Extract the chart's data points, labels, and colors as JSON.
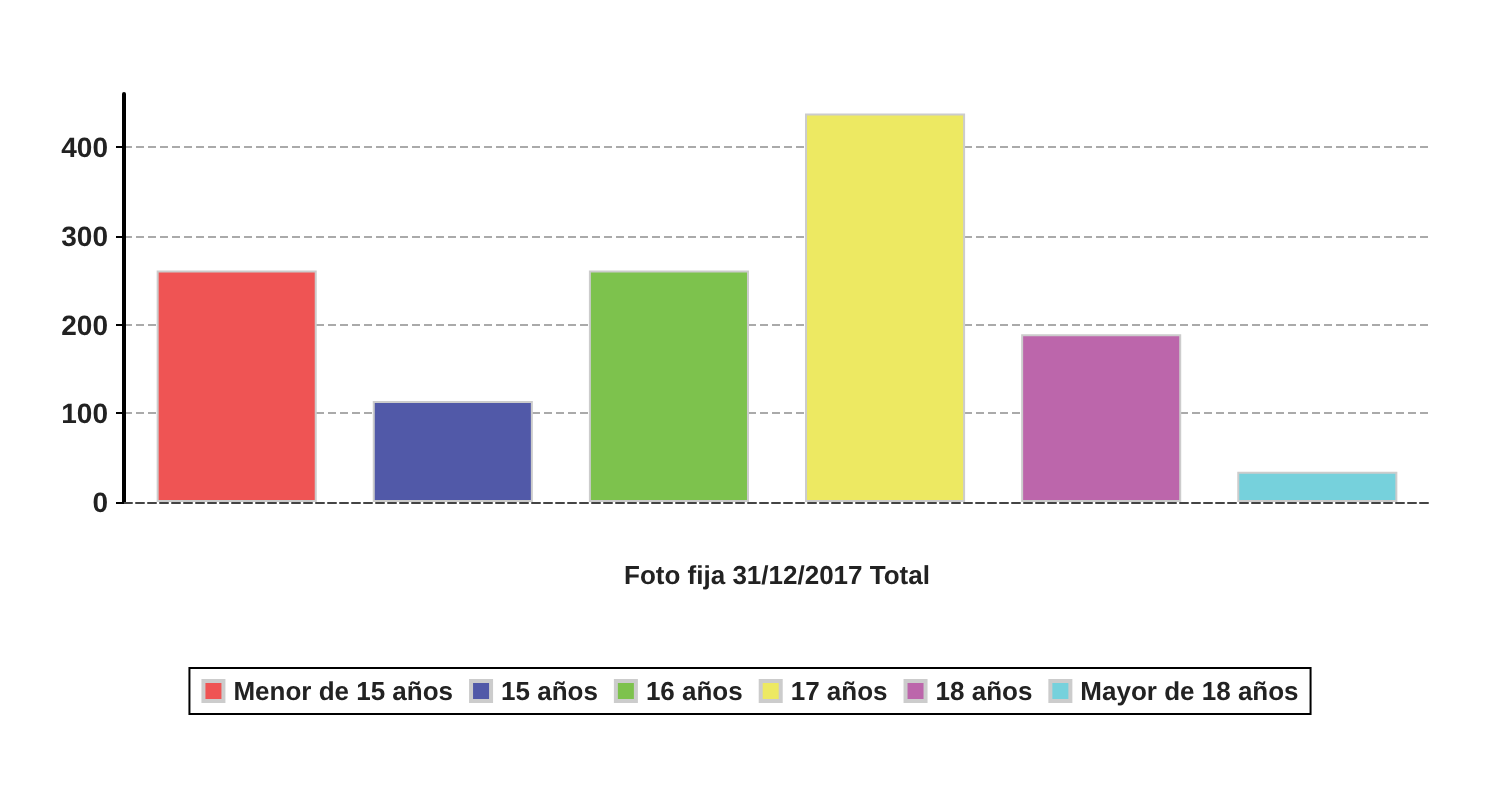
{
  "chart_data": {
    "type": "bar",
    "categories": [
      "Foto fija 31/12/2017 Total"
    ],
    "series": [
      {
        "name": "Menor de 15 años",
        "color": "#ef5454",
        "values": [
          261
        ]
      },
      {
        "name": "15 años",
        "color": "#5159a8",
        "values": [
          114
        ]
      },
      {
        "name": "16 años",
        "color": "#7dc24d",
        "values": [
          261
        ]
      },
      {
        "name": "17 años",
        "color": "#ede962",
        "values": [
          438
        ]
      },
      {
        "name": "18 años",
        "color": "#bc66ab",
        "values": [
          189
        ]
      },
      {
        "name": "Mayor de 18 años",
        "color": "#76d1dc",
        "values": [
          34
        ]
      }
    ],
    "ylim": [
      0,
      460
    ],
    "yticks": [
      0,
      100,
      200,
      300,
      400
    ],
    "grid": "y",
    "legend": "bottom"
  }
}
